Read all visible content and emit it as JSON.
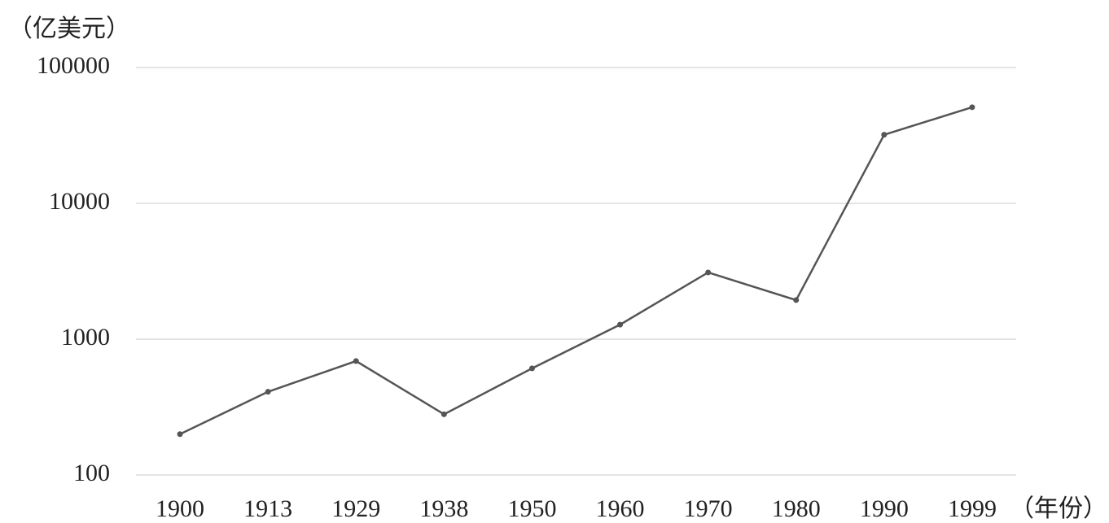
{
  "chart_data": {
    "type": "line",
    "y_label": "（亿美元）",
    "x_label": "（年份）",
    "categories": [
      "1900",
      "1913",
      "1929",
      "1938",
      "1950",
      "1960",
      "1970",
      "1980",
      "1990",
      "1999"
    ],
    "values": [
      200,
      410,
      690,
      280,
      610,
      1280,
      3100,
      1940,
      32000,
      51000
    ],
    "color": "#555555",
    "ylim": [
      100,
      100000
    ],
    "yticks": [
      100,
      1000,
      10000,
      100000
    ],
    "log_scale": true,
    "grid": true
  }
}
